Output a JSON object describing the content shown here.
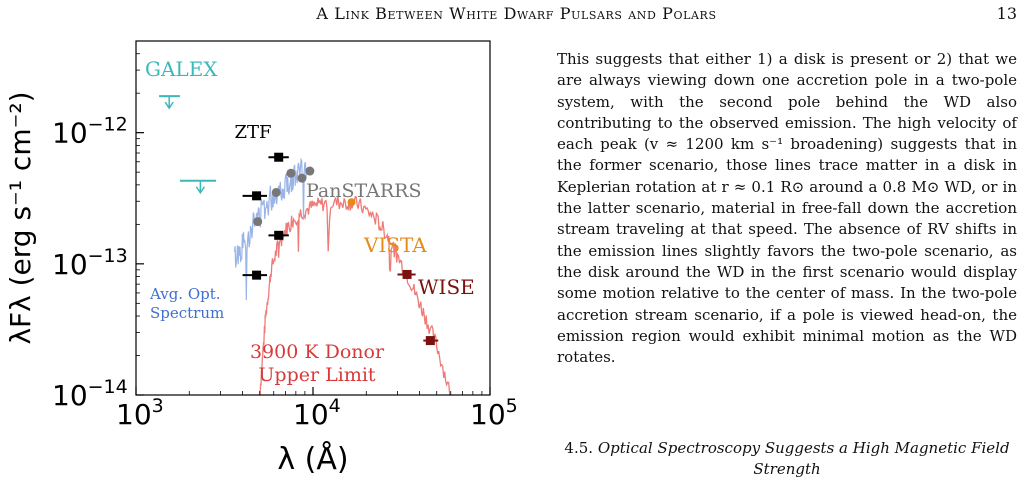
{
  "header": {
    "running_title": "A Link Between White Dwarf Pulsars and Polars",
    "page_number": "13"
  },
  "body": {
    "paragraph": "This suggests that either 1) a disk is present or 2) that we are always viewing down one accretion pole in a two-pole system, with the second pole behind the WD also contributing to the observed emission. The high velocity of each peak (v ≈ 1200 km s⁻¹ broadening) suggests that in the former scenario, those lines trace matter in a disk in Keplerian rotation at r ≈ 0.1 R⊙ around a 0.8 M⊙ WD, or in the latter scenario, material in free-fall down the accretion stream traveling at that speed. The absence of RV shifts in the emission lines slightly favors the two-pole scenario, as the disk around the WD in the first scenario would display some motion relative to the center of mass. In the two-pole accretion stream scenario, if a pole is viewed head-on, the emission region would exhibit minimal motion as the WD rotates."
  },
  "section": {
    "number": "4.5.",
    "title": "Optical Spectroscopy Suggests a High Magnetic Field Strength"
  },
  "chart_data": {
    "type": "scatter",
    "title": "",
    "xlabel": "λ (Å)",
    "ylabel": "λFλ (erg s⁻¹ cm⁻²)",
    "xscale": "log",
    "yscale": "log",
    "xlim": [
      1000,
      100000
    ],
    "ylim": [
      1e-14,
      5e-12
    ],
    "x_ticks": [
      {
        "value": 1000,
        "base": "10",
        "exp": "3"
      },
      {
        "value": 10000,
        "base": "10",
        "exp": "4"
      },
      {
        "value": 100000,
        "base": "10",
        "exp": "5"
      }
    ],
    "y_ticks": [
      {
        "value": 1e-14,
        "base": "10",
        "exp": "−14"
      },
      {
        "value": 1e-13,
        "base": "10",
        "exp": "−13"
      },
      {
        "value": 1e-12,
        "base": "10",
        "exp": "−12"
      }
    ],
    "grid": false,
    "colors": {
      "galex": "#3cb8b8",
      "ztf": "#000000",
      "panstarrs": "#777777",
      "vista": "#e88a1a",
      "wise": "#7a1212",
      "spectrum": "#9ab4e8",
      "donor": "#ee7b78",
      "donor_label": "#d63a3a",
      "spectrum_label": "#3f6fd0"
    },
    "series": [
      {
        "name": "GALEX",
        "marker": "upper-limit",
        "points": [
          {
            "x": 1540,
            "y": 1.9e-12,
            "xerr_lo": 1350,
            "xerr_hi": 1770
          },
          {
            "x": 2310,
            "y": 4.3e-13,
            "xerr_lo": 1770,
            "xerr_hi": 2830
          }
        ]
      },
      {
        "name": "ZTF",
        "marker": "square",
        "points": [
          {
            "x": 4800,
            "y": 3.3e-13,
            "xerr_lo": 4000,
            "xerr_hi": 5500
          },
          {
            "x": 6400,
            "y": 6.5e-13,
            "xerr_lo": 5600,
            "xerr_hi": 7300
          },
          {
            "x": 6400,
            "y": 1.65e-13,
            "xerr_lo": 5600,
            "xerr_hi": 7300
          },
          {
            "x": 4800,
            "y": 8.2e-14,
            "xerr_lo": 4000,
            "xerr_hi": 5500
          }
        ]
      },
      {
        "name": "PanSTARRS",
        "marker": "circle",
        "points": [
          {
            "x": 4870,
            "y": 2.1e-13
          },
          {
            "x": 6200,
            "y": 3.5e-13
          },
          {
            "x": 7500,
            "y": 4.9e-13
          },
          {
            "x": 8660,
            "y": 4.5e-13
          },
          {
            "x": 9600,
            "y": 5.1e-13
          }
        ]
      },
      {
        "name": "VISTA",
        "marker": "circle",
        "points": [
          {
            "x": 16500,
            "y": 2.95e-13
          }
        ]
      },
      {
        "name": "WISE",
        "marker": "square",
        "points": [
          {
            "x": 34000,
            "y": 8.3e-14,
            "xerr_lo": 30000,
            "xerr_hi": 38000
          },
          {
            "x": 46000,
            "y": 2.6e-14,
            "xerr_lo": 42000,
            "xerr_hi": 51000
          }
        ]
      }
    ],
    "annotations": {
      "galex": "GALEX",
      "ztf": "ZTF",
      "panstarrs": "PanSTARRS",
      "vista": "VISTA",
      "wise": "WISE",
      "spectrum_line1": "Avg. Opt.",
      "spectrum_line2": "Spectrum",
      "donor_line1": "3900 K Donor",
      "donor_line2": "Upper Limit"
    },
    "donor_model": {
      "temperature_K": 3900,
      "envelope": [
        [
          5000,
          1e-14
        ],
        [
          5400,
          4e-14
        ],
        [
          5800,
          9e-14
        ],
        [
          6500,
          1.55e-13
        ],
        [
          7500,
          2.1e-13
        ],
        [
          8500,
          2.45e-13
        ],
        [
          10000,
          2.75e-13
        ],
        [
          12000,
          2.9e-13
        ],
        [
          15000,
          2.95e-13
        ],
        [
          18000,
          2.85e-13
        ],
        [
          22000,
          2.3e-13
        ],
        [
          26000,
          1.7e-13
        ],
        [
          30000,
          1.15e-13
        ],
        [
          36000,
          7e-14
        ],
        [
          42000,
          4.3e-14
        ],
        [
          50000,
          2.4e-14
        ],
        [
          60000,
          1e-14
        ]
      ]
    },
    "optical_spectrum": {
      "envelope": [
        [
          3600,
          1.1e-13
        ],
        [
          3900,
          1.3e-13
        ],
        [
          4200,
          1.55e-13
        ],
        [
          4600,
          2e-13
        ],
        [
          5000,
          2.4e-13
        ],
        [
          5500,
          2.9e-13
        ],
        [
          6000,
          3.4e-13
        ],
        [
          6600,
          3.8e-13
        ],
        [
          7200,
          4.2e-13
        ],
        [
          7800,
          4.6e-13
        ],
        [
          8500,
          5e-13
        ],
        [
          9200,
          5.2e-13
        ]
      ]
    }
  }
}
